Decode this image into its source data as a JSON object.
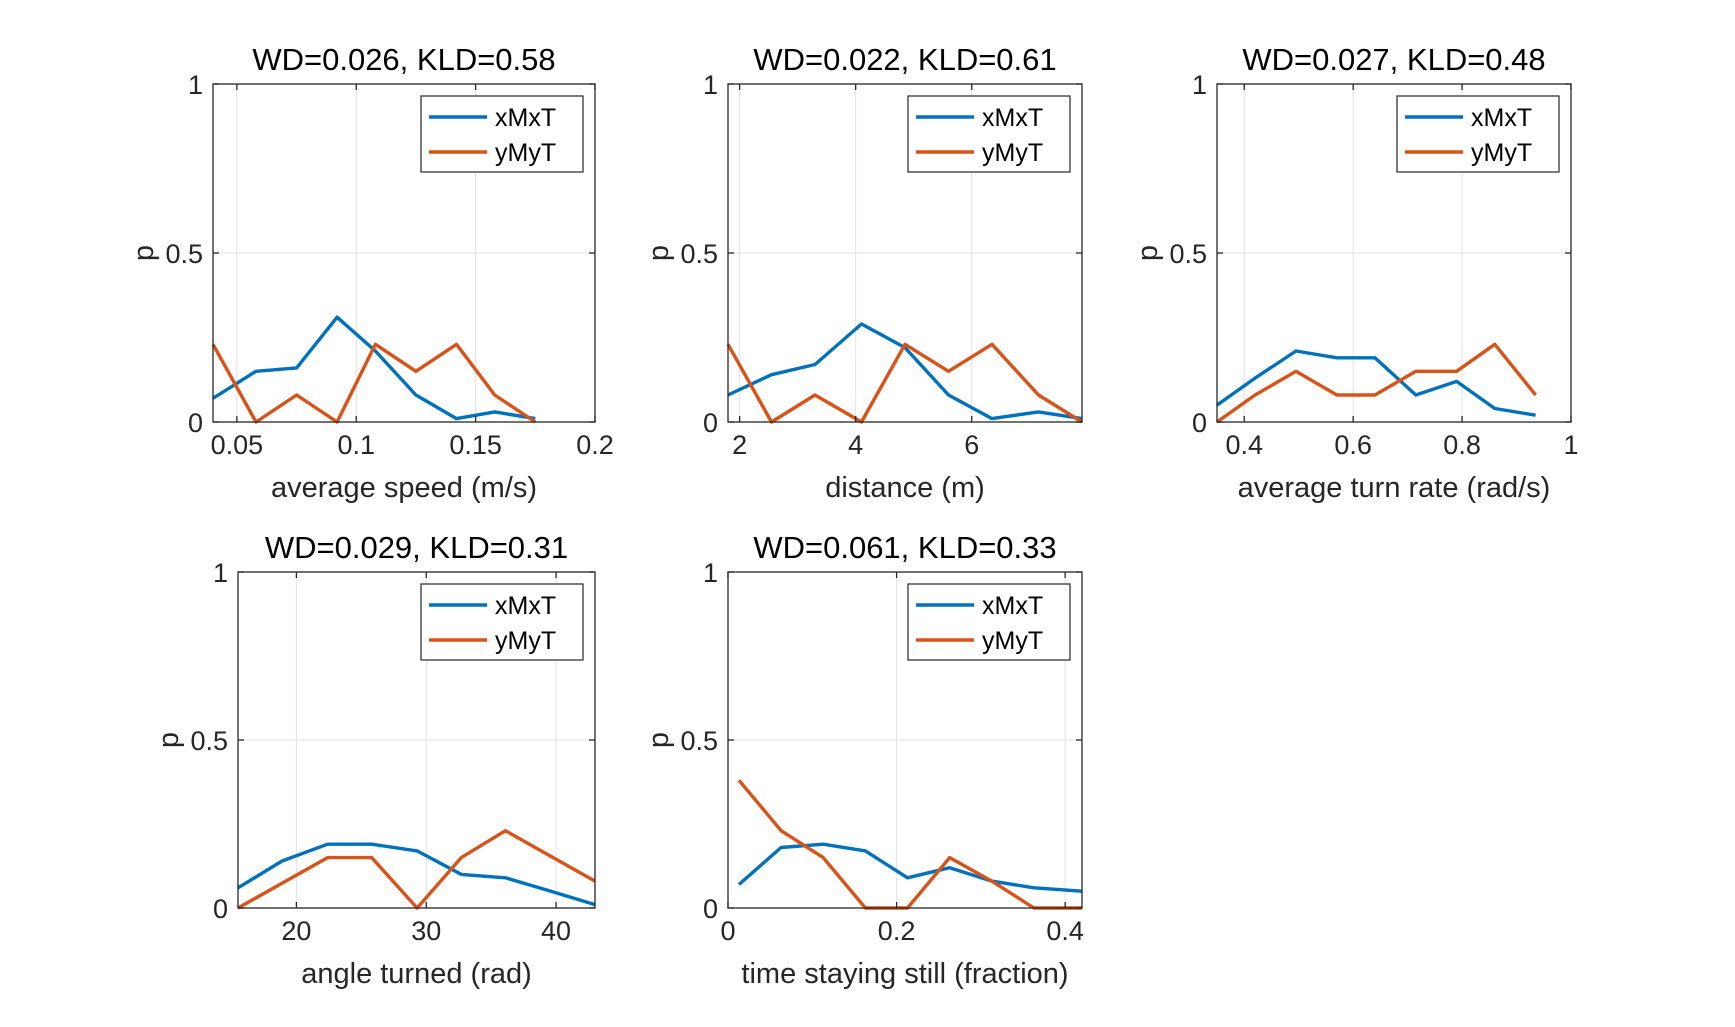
{
  "figure": {
    "colors": {
      "xMxT": "#0072BD",
      "yMyT": "#D95319"
    },
    "chart_data": [
      {
        "type": "line",
        "title": "WD=0.026, KLD=0.58",
        "xlabel": "average speed (m/s)",
        "ylabel": "p",
        "xlim": [
          0.04,
          0.2
        ],
        "ylim": [
          0,
          1
        ],
        "xticks": [
          0.05,
          0.1,
          0.15,
          0.2
        ],
        "xtick_labels": [
          "0.05",
          "0.1",
          "0.15",
          "0.2"
        ],
        "yticks": [
          0,
          0.5,
          1
        ],
        "ytick_labels": [
          "0",
          "0.5",
          "1"
        ],
        "grid": true,
        "legend": "top-right",
        "series": [
          {
            "name": "xMxT",
            "color": "#0072BD",
            "x": [
              0.04,
              0.058,
              0.075,
              0.092,
              0.108,
              0.125,
              0.142,
              0.158,
              0.175
            ],
            "y": [
              0.07,
              0.15,
              0.16,
              0.31,
              0.21,
              0.08,
              0.01,
              0.03,
              0.01
            ]
          },
          {
            "name": "yMyT",
            "color": "#D95319",
            "x": [
              0.04,
              0.058,
              0.075,
              0.092,
              0.108,
              0.125,
              0.142,
              0.158,
              0.175
            ],
            "y": [
              0.23,
              0.0,
              0.08,
              0.0,
              0.23,
              0.15,
              0.23,
              0.08,
              0.0
            ]
          }
        ]
      },
      {
        "type": "line",
        "title": "WD=0.022, KLD=0.61",
        "xlabel": "distance (m)",
        "ylabel": "p",
        "xlim": [
          1.8,
          7.9
        ],
        "ylim": [
          0,
          1
        ],
        "xticks": [
          2,
          4,
          6
        ],
        "xtick_labels": [
          "2",
          "4",
          "6"
        ],
        "yticks": [
          0,
          0.5,
          1
        ],
        "ytick_labels": [
          "0",
          "0.5",
          "1"
        ],
        "grid": true,
        "legend": "top-right",
        "series": [
          {
            "name": "xMxT",
            "color": "#0072BD",
            "x": [
              1.8,
              2.55,
              3.3,
              4.1,
              4.85,
              5.6,
              6.35,
              7.15,
              7.9
            ],
            "y": [
              0.08,
              0.14,
              0.17,
              0.29,
              0.22,
              0.08,
              0.01,
              0.03,
              0.01
            ]
          },
          {
            "name": "yMyT",
            "color": "#D95319",
            "x": [
              1.8,
              2.55,
              3.3,
              4.1,
              4.85,
              5.6,
              6.35,
              7.15,
              7.9
            ],
            "y": [
              0.23,
              0.0,
              0.08,
              0.0,
              0.23,
              0.15,
              0.23,
              0.08,
              0.0
            ]
          }
        ]
      },
      {
        "type": "line",
        "title": "WD=0.027, KLD=0.48",
        "xlabel": "average turn rate (rad/s)",
        "ylabel": "p",
        "xlim": [
          0.35,
          1.0
        ],
        "ylim": [
          0,
          1
        ],
        "xticks": [
          0.4,
          0.6,
          0.8,
          1
        ],
        "xtick_labels": [
          "0.4",
          "0.6",
          "0.8",
          "1"
        ],
        "yticks": [
          0,
          0.5,
          1
        ],
        "ytick_labels": [
          "0",
          "0.5",
          "1"
        ],
        "grid": true,
        "legend": "top-right",
        "series": [
          {
            "name": "xMxT",
            "color": "#0072BD",
            "x": [
              0.35,
              0.42,
              0.495,
              0.57,
              0.64,
              0.715,
              0.79,
              0.86,
              0.935
            ],
            "y": [
              0.05,
              0.13,
              0.21,
              0.19,
              0.19,
              0.08,
              0.12,
              0.04,
              0.02
            ]
          },
          {
            "name": "yMyT",
            "color": "#D95319",
            "x": [
              0.35,
              0.42,
              0.495,
              0.57,
              0.64,
              0.715,
              0.79,
              0.86,
              0.935
            ],
            "y": [
              0.0,
              0.08,
              0.15,
              0.08,
              0.08,
              0.15,
              0.15,
              0.23,
              0.08
            ]
          }
        ]
      },
      {
        "type": "line",
        "title": "WD=0.029, KLD=0.31",
        "xlabel": "angle turned (rad)",
        "ylabel": "p",
        "xlim": [
          15.5,
          43
        ],
        "ylim": [
          0,
          1
        ],
        "xticks": [
          20,
          30,
          40
        ],
        "xtick_labels": [
          "20",
          "30",
          "40"
        ],
        "yticks": [
          0,
          0.5,
          1
        ],
        "ytick_labels": [
          "0",
          "0.5",
          "1"
        ],
        "grid": true,
        "legend": "top-right",
        "series": [
          {
            "name": "xMxT",
            "color": "#0072BD",
            "x": [
              15.5,
              18.9,
              22.4,
              25.8,
              29.3,
              32.7,
              36.1,
              39.6,
              43
            ],
            "y": [
              0.06,
              0.14,
              0.19,
              0.19,
              0.17,
              0.1,
              0.09,
              0.05,
              0.01
            ]
          },
          {
            "name": "yMyT",
            "color": "#D95319",
            "x": [
              15.5,
              22.4,
              25.8,
              29.3,
              32.7,
              36.1,
              43
            ],
            "y": [
              0.0,
              0.15,
              0.15,
              0.0,
              0.15,
              0.23,
              0.08
            ]
          }
        ]
      },
      {
        "type": "line",
        "title": "WD=0.061, KLD=0.33",
        "xlabel": "time staying still (fraction)",
        "ylabel": "p",
        "xlim": [
          0,
          0.42
        ],
        "ylim": [
          0,
          1
        ],
        "xticks": [
          0,
          0.2,
          0.4
        ],
        "xtick_labels": [
          "0",
          "0.2",
          "0.4"
        ],
        "yticks": [
          0,
          0.5,
          1
        ],
        "ytick_labels": [
          "0",
          "0.5",
          "1"
        ],
        "grid": true,
        "legend": "top-right",
        "series": [
          {
            "name": "xMxT",
            "color": "#0072BD",
            "x": [
              0.013,
              0.063,
              0.113,
              0.163,
              0.213,
              0.263,
              0.313,
              0.363,
              0.42
            ],
            "y": [
              0.07,
              0.18,
              0.19,
              0.17,
              0.09,
              0.12,
              0.08,
              0.06,
              0.05
            ]
          },
          {
            "name": "yMyT",
            "color": "#D95319",
            "x": [
              0.013,
              0.063,
              0.113,
              0.163,
              0.213,
              0.263,
              0.313,
              0.363,
              0.42
            ],
            "y": [
              0.38,
              0.23,
              0.15,
              0.0,
              0.0,
              0.15,
              0.08,
              0.0,
              0.0
            ]
          }
        ]
      }
    ]
  }
}
